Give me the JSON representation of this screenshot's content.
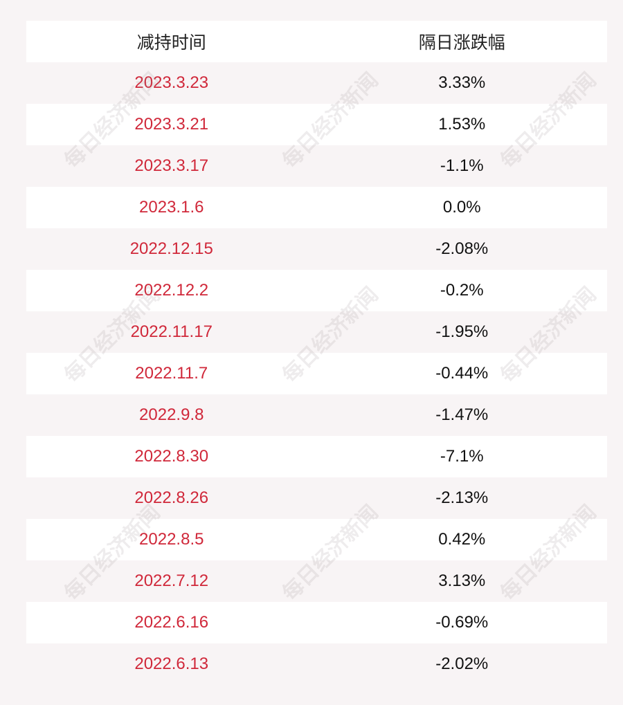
{
  "table": {
    "headers": {
      "date": "减持时间",
      "change": "隔日涨跌幅"
    },
    "rows": [
      {
        "date": "2023.3.23",
        "change": "3.33%"
      },
      {
        "date": "2023.3.21",
        "change": "1.53%"
      },
      {
        "date": "2023.3.17",
        "change": "-1.1%"
      },
      {
        "date": "2023.1.6",
        "change": "0.0%"
      },
      {
        "date": "2022.12.15",
        "change": "-2.08%"
      },
      {
        "date": "2022.12.2",
        "change": "-0.2%"
      },
      {
        "date": "2022.11.17",
        "change": "-1.95%"
      },
      {
        "date": "2022.11.7",
        "change": "-0.44%"
      },
      {
        "date": "2022.9.8",
        "change": "-1.47%"
      },
      {
        "date": "2022.8.30",
        "change": "-7.1%"
      },
      {
        "date": "2022.8.26",
        "change": "-2.13%"
      },
      {
        "date": "2022.8.5",
        "change": "0.42%"
      },
      {
        "date": "2022.7.12",
        "change": "3.13%"
      },
      {
        "date": "2022.6.16",
        "change": "-0.69%"
      },
      {
        "date": "2022.6.13",
        "change": "-2.02%"
      }
    ]
  },
  "watermark": {
    "text": "每日经济新闻"
  },
  "colors": {
    "date_text": "#d0283a",
    "value_text": "#111111",
    "row_light": "#ffffff",
    "row_tint": "#f8f4f5"
  }
}
